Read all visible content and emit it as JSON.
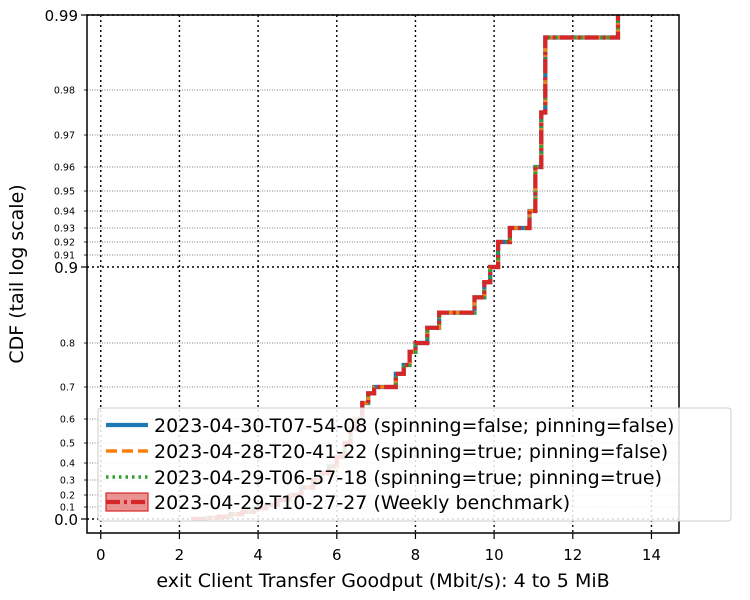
{
  "chart_data": {
    "type": "line",
    "title": "",
    "xlabel": "exit Client Transfer Goodput (Mbit/s): 4 to 5 MiB",
    "ylabel": "CDF (tail log scale)",
    "xlim": [
      -0.35,
      14.7
    ],
    "x_ticks": [
      0,
      2,
      4,
      6,
      8,
      10,
      12,
      14
    ],
    "x_tick_labels": [
      "0",
      "2",
      "4",
      "6",
      "8",
      "10",
      "12",
      "14"
    ],
    "y_scale": "logit-tail",
    "y_major_ticks": [
      0.0,
      0.9,
      0.99
    ],
    "y_major_tick_labels": [
      "0.0",
      "0.9",
      "0.99"
    ],
    "y_minor_ticks": [
      0.1,
      0.2,
      0.3,
      0.4,
      0.5,
      0.6,
      0.7,
      0.8,
      0.91,
      0.92,
      0.93,
      0.94,
      0.95,
      0.96,
      0.97,
      0.98
    ],
    "y_minor_tick_labels": [
      "0.1",
      "0.2",
      "0.3",
      "0.4",
      "0.5",
      "0.6",
      "0.7",
      "0.8",
      "0.91",
      "0.92",
      "0.93",
      "0.94",
      "0.95",
      "0.96",
      "0.97",
      "0.98"
    ],
    "grid": true,
    "legend_position": "lower-right",
    "x": [
      2.3,
      2.7,
      3.0,
      3.3,
      3.6,
      3.9,
      4.2,
      4.5,
      4.8,
      5.1,
      5.4,
      5.6,
      5.8,
      6.0,
      6.2,
      6.35,
      6.5,
      6.65,
      6.8,
      6.95,
      7.2,
      7.5,
      7.7,
      7.85,
      8.0,
      8.3,
      8.6,
      9.0,
      9.5,
      9.75,
      9.9,
      10.1,
      10.4,
      10.9,
      11.05,
      11.2,
      11.3,
      13.15
    ],
    "y": [
      0.0,
      0.01,
      0.02,
      0.04,
      0.06,
      0.09,
      0.12,
      0.16,
      0.2,
      0.25,
      0.3,
      0.34,
      0.38,
      0.43,
      0.5,
      0.56,
      0.6,
      0.65,
      0.68,
      0.7,
      0.7,
      0.73,
      0.75,
      0.78,
      0.8,
      0.82,
      0.84,
      0.84,
      0.86,
      0.88,
      0.9,
      0.92,
      0.93,
      0.94,
      0.96,
      0.975,
      0.987,
      0.99
    ],
    "series": [
      {
        "name": "2023-04-30-T07-54-08 (spinning=false; pinning=false)",
        "color": "#1f77b4",
        "dash": "solid"
      },
      {
        "name": "2023-04-28-T20-41-22 (spinning=true; pinning=false)",
        "color": "#ff7f0e",
        "dash": "dashed"
      },
      {
        "name": "2023-04-29-T06-57-18 (spinning=true; pinning=true)",
        "color": "#2ca02c",
        "dash": "dotted"
      },
      {
        "name": "2023-04-29-T10-27-27 (Weekly benchmark)",
        "color": "#d62728",
        "dash": "dashdot",
        "band": true
      }
    ]
  }
}
